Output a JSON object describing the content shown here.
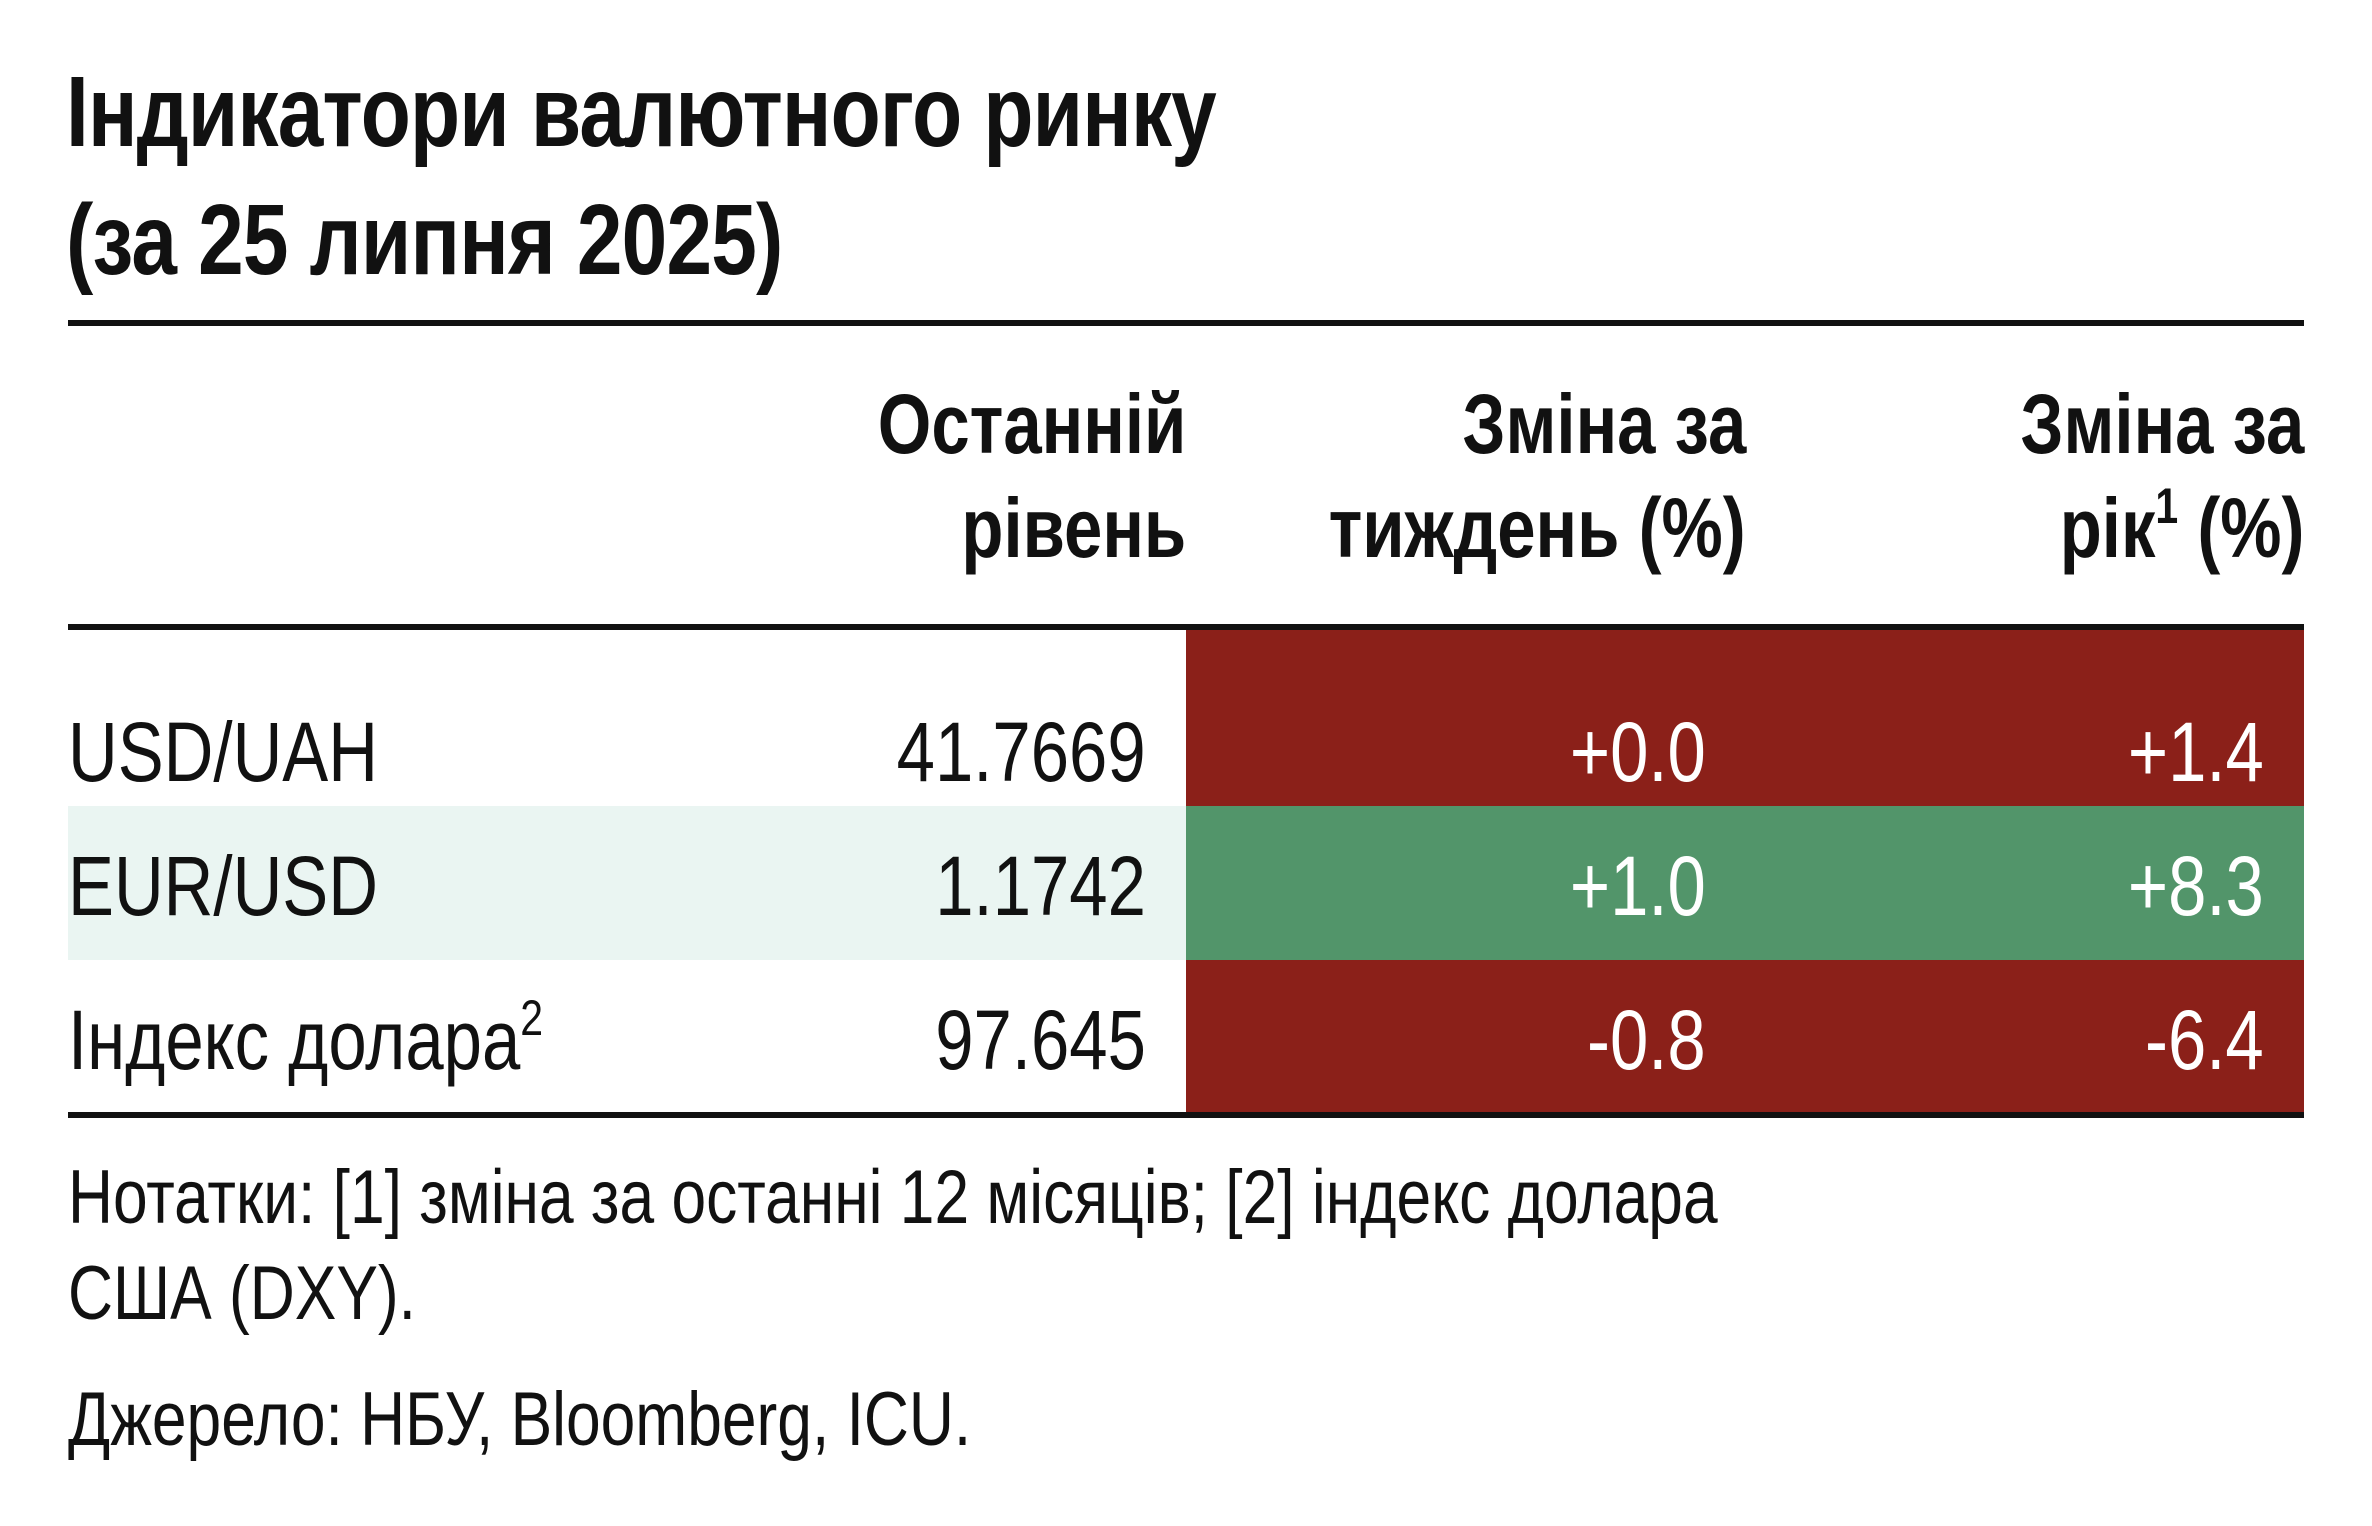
{
  "title": {
    "line1": "Індикатори валютного ринку",
    "line2": "(за 25 липня 2025)"
  },
  "columns": {
    "last_level": {
      "line1": "Останній",
      "line2": "рівень"
    },
    "week_change": {
      "line1": "Зміна за",
      "line2": "тиждень (%)"
    },
    "year_change": {
      "line1": "Зміна за",
      "line2_pre": "рік",
      "line2_sup": "1",
      "line2_post": " (%)"
    }
  },
  "rows": [
    {
      "label": "USD/UAH",
      "label_sup": "",
      "last": "41.7669",
      "week": "+0.0",
      "year": "+1.4",
      "status": "negative"
    },
    {
      "label": "EUR/USD",
      "label_sup": "",
      "last": "1.1742",
      "week": "+1.0",
      "year": "+8.3",
      "status": "positive"
    },
    {
      "label": "Індекс долара",
      "label_sup": "2",
      "last": "97.645",
      "week": "-0.8",
      "year": "-6.4",
      "status": "negative"
    }
  ],
  "notes": {
    "line1": "Нотатки: [1] зміна за останні 12 місяців; [2] індекс долара",
    "line2": "США (DXY).",
    "source": "Джерело: НБУ, Bloomberg, ICU."
  },
  "colors": {
    "negative": "#8b2019",
    "positive": "#52956a",
    "row_shade": "#eaf5f2"
  }
}
